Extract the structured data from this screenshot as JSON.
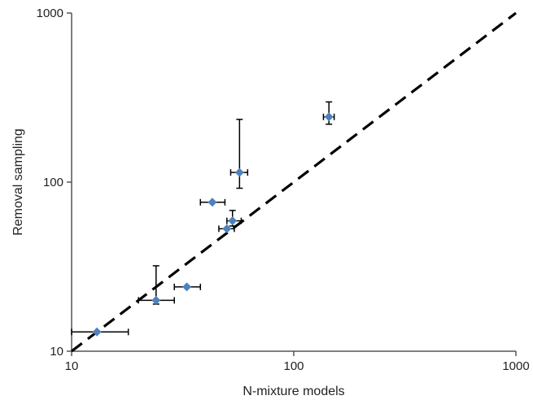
{
  "chart_data": {
    "type": "scatter",
    "xlabel": "N-mixture models",
    "ylabel": "Removal sampling",
    "x_scale": "log",
    "y_scale": "log",
    "xlim": [
      10,
      1000
    ],
    "ylim": [
      10,
      1000
    ],
    "x_ticks": [
      10,
      100,
      1000
    ],
    "y_ticks": [
      10,
      100,
      1000
    ],
    "x_tick_labels": [
      "10",
      "100",
      "1000"
    ],
    "y_tick_labels": [
      "10",
      "100",
      "1000"
    ],
    "grid": false,
    "legend": "none",
    "marker": "diamond",
    "marker_color": "#4f81bd",
    "reference_line": {
      "style": "dashed",
      "color": "#000000",
      "from": [
        10,
        10
      ],
      "to": [
        1000,
        1000
      ]
    },
    "points": [
      {
        "x": 13,
        "y": 13,
        "x_err": [
          10,
          18
        ]
      },
      {
        "x": 24,
        "y": 20,
        "x_err": [
          20,
          29
        ],
        "y_err": [
          19,
          32
        ]
      },
      {
        "x": 33,
        "y": 24,
        "x_err": [
          29,
          38
        ]
      },
      {
        "x": 43,
        "y": 76,
        "x_err": [
          38,
          49
        ]
      },
      {
        "x": 50,
        "y": 53,
        "x_err": [
          46,
          54
        ]
      },
      {
        "x": 53,
        "y": 59,
        "x_err": [
          50,
          58
        ],
        "y_err": [
          55,
          68
        ]
      },
      {
        "x": 57,
        "y": 114,
        "x_err": [
          52,
          62
        ],
        "y_err": [
          92,
          235
        ]
      },
      {
        "x": 144,
        "y": 243,
        "x_err": [
          136,
          152
        ],
        "y_err": [
          220,
          298
        ]
      }
    ]
  }
}
